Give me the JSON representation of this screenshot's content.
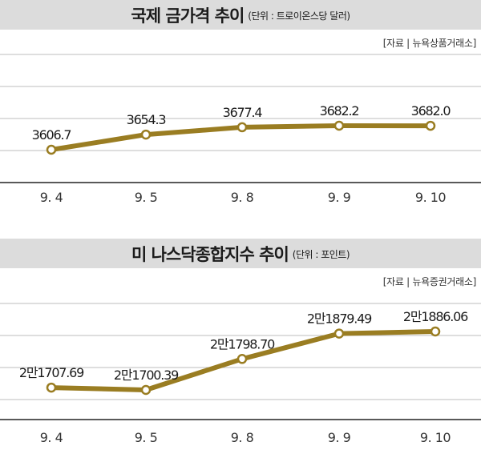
{
  "chart_data": [
    {
      "type": "line",
      "title": "국제 금가격 추이",
      "unit": "(단위 : 트로이온스당 달러)",
      "source": "[자료 | 뉴욕상품거래소]",
      "categories": [
        "9. 4",
        "9. 5",
        "9. 8",
        "9. 9",
        "9. 10"
      ],
      "values": [
        3606.7,
        3654.3,
        3677.4,
        3682.2,
        3682.0
      ],
      "value_labels": [
        "3606.7",
        "3654.3",
        "3677.4",
        "3682.2",
        "3682.0"
      ],
      "grid": true,
      "line_color": "#9a7d22"
    },
    {
      "type": "line",
      "title": "미 나스닥종합지수 추이",
      "unit": "(단위 : 포인트)",
      "source": "[자료 | 뉴욕증권거래소]",
      "categories": [
        "9. 4",
        "9. 5",
        "9. 8",
        "9. 9",
        "9. 10"
      ],
      "values": [
        21707.69,
        21700.39,
        21798.7,
        21879.49,
        21886.06
      ],
      "value_labels": [
        "2만1707.69",
        "2만1700.39",
        "2만1798.70",
        "2만1879.49",
        "2만1886.06"
      ],
      "grid": true,
      "line_color": "#9a7d22"
    }
  ]
}
